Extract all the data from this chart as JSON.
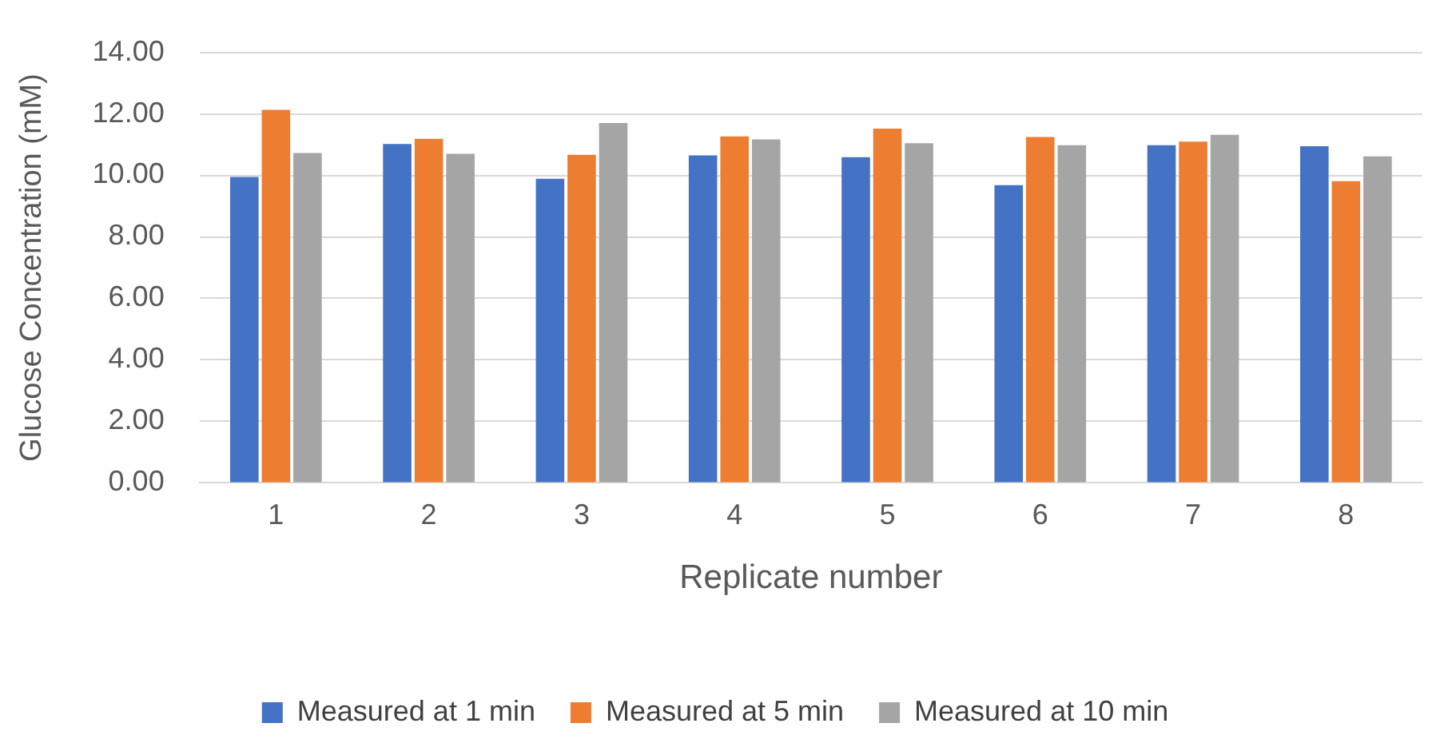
{
  "chart_data": {
    "type": "bar",
    "xlabel": "Replicate number",
    "ylabel": "Glucose Concentration (mM)",
    "categories": [
      "1",
      "2",
      "3",
      "4",
      "5",
      "6",
      "7",
      "8"
    ],
    "series": [
      {
        "name": "Measured at 1 min",
        "color": "#4472c4",
        "values": [
          9.95,
          11.02,
          9.89,
          10.65,
          10.59,
          9.68,
          10.98,
          10.95
        ]
      },
      {
        "name": "Measured at 5 min",
        "color": "#ed7d31",
        "values": [
          12.13,
          11.19,
          10.67,
          11.27,
          11.52,
          11.25,
          11.1,
          9.81
        ]
      },
      {
        "name": "Measured at 10 min",
        "color": "#a5a5a5",
        "values": [
          10.73,
          10.7,
          11.7,
          11.17,
          11.05,
          10.98,
          11.32,
          10.62
        ]
      }
    ],
    "ylim": [
      0,
      14
    ],
    "yticks": [
      {
        "value": 0,
        "label": "0.00"
      },
      {
        "value": 2,
        "label": "2.00"
      },
      {
        "value": 4,
        "label": "4.00"
      },
      {
        "value": 6,
        "label": "6.00"
      },
      {
        "value": 8,
        "label": "8.00"
      },
      {
        "value": 10,
        "label": "10.00"
      },
      {
        "value": 12,
        "label": "12.00"
      },
      {
        "value": 14,
        "label": "14.00"
      }
    ],
    "grid": "y",
    "legend": "bottom"
  }
}
